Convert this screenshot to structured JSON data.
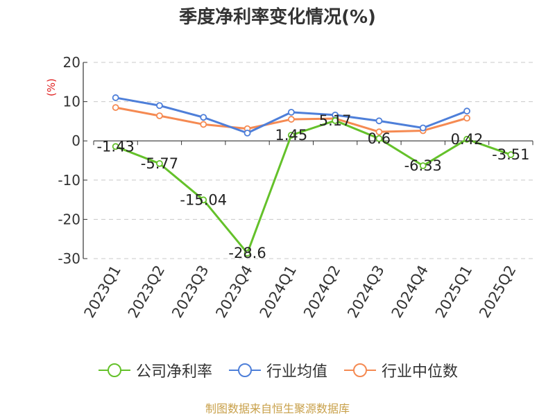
{
  "title": "季度净利率变化情况(%)",
  "source": "制图数据来自恒生聚源数据库",
  "colors": {
    "company": "#64c12a",
    "industry_avg": "#4e7fd9",
    "industry_median": "#f58a52",
    "ylabel": "#e02020"
  },
  "chart_data": {
    "type": "line",
    "title": "季度净利率变化情况(%)",
    "ylabel": "(%)",
    "xlabel": "",
    "ylim": [
      -30,
      20
    ],
    "yticks": [
      20,
      10,
      0,
      -10,
      -20,
      -30
    ],
    "grid": true,
    "legend_position": "bottom",
    "categories": [
      "2023Q1",
      "2023Q2",
      "2023Q3",
      "2023Q4",
      "2024Q1",
      "2024Q2",
      "2024Q3",
      "2024Q4",
      "2025Q1",
      "2025Q2"
    ],
    "series": [
      {
        "name": "公司净利率",
        "color": "#64c12a",
        "values": [
          -1.43,
          -5.77,
          -15.04,
          -28.6,
          1.45,
          5.17,
          0.6,
          -6.33,
          0.42,
          -3.51
        ],
        "data_labels": [
          "-1.43",
          "-5.77",
          "-15.04",
          "-28.6",
          "1.45",
          "5.17",
          "0.6",
          "-6.33",
          "0.42",
          "-3.51"
        ]
      },
      {
        "name": "行业均值",
        "color": "#4e7fd9",
        "values": [
          11.0,
          9.0,
          6.0,
          2.0,
          7.3,
          6.6,
          5.1,
          3.3,
          7.6,
          null
        ]
      },
      {
        "name": "行业中位数",
        "color": "#f58a52",
        "values": [
          8.5,
          6.4,
          4.2,
          3.1,
          5.5,
          5.7,
          2.3,
          2.6,
          5.8,
          null
        ]
      }
    ]
  }
}
